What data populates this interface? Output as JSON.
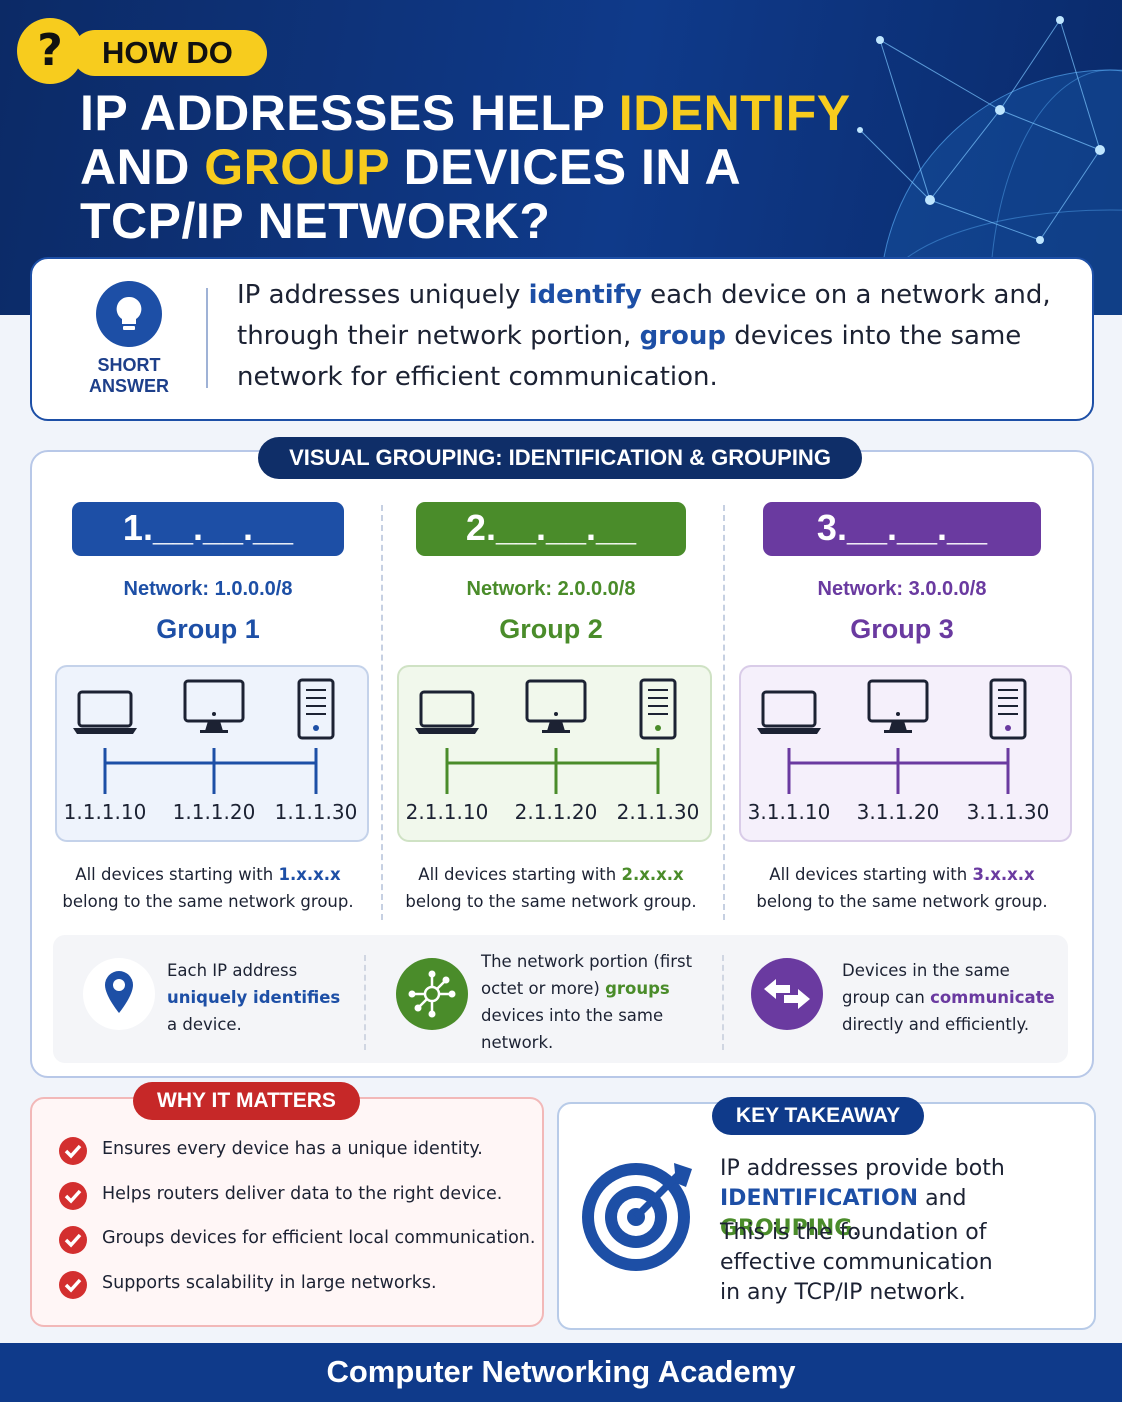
{
  "header": {
    "badge_icon": "?",
    "badge": "HOW DO",
    "title": [
      [
        "IP ADDRESSES HELP ",
        "IDENTIFY"
      ],
      [
        "AND ",
        "GROUP",
        " DEVICES IN A"
      ],
      [
        "TCP/IP NETWORK?"
      ]
    ]
  },
  "short_answer": {
    "label": [
      "SHORT",
      "ANSWER"
    ],
    "text": [
      "IP addresses uniquely ",
      "identify",
      " each device on a network and, through their network portion, ",
      "group",
      " devices into the same network for efficient communication."
    ]
  },
  "visual": {
    "title": "VISUAL GROUPING: IDENTIFICATION & GROUPING",
    "groups": [
      {
        "color": "#1d4fa6",
        "tint": "#eef3fc",
        "prefix": "1.__.__.__",
        "network": "Network: 1.0.0.0/8",
        "name": "Group 1",
        "ips": [
          "1.1.1.10",
          "1.1.1.20",
          "1.1.1.30"
        ],
        "note": [
          "All devices starting with ",
          "1.x.x.x",
          " belong to the same network group."
        ]
      },
      {
        "color": "#4a8c2a",
        "tint": "#f1f8ec",
        "prefix": "2.__.__.__",
        "network": "Network: 2.0.0.0/8",
        "name": "Group 2",
        "ips": [
          "2.1.1.10",
          "2.1.1.20",
          "2.1.1.30"
        ],
        "note": [
          "All devices starting with ",
          "2.x.x.x",
          " belong to the same network group."
        ]
      },
      {
        "color": "#6a3aa0",
        "tint": "#f5f0fb",
        "prefix": "3.__.__.__",
        "network": "Network: 3.0.0.0/8",
        "name": "Group 3",
        "ips": [
          "3.1.1.10",
          "3.1.1.20",
          "3.1.1.30"
        ],
        "note": [
          "All devices starting with ",
          "3.x.x.x",
          " belong to the same network group."
        ]
      }
    ],
    "points": [
      {
        "color": "#1d4fa6",
        "text": [
          "Each IP address ",
          "uniquely identifies",
          " a device."
        ]
      },
      {
        "color": "#4a8c2a",
        "text": [
          "The network portion (first octet or more) ",
          "groups",
          " devices into the same network."
        ]
      },
      {
        "color": "#6a3aa0",
        "text": [
          "Devices in the same group can ",
          "communicate",
          " directly and efficiently."
        ]
      }
    ]
  },
  "why": {
    "title": "WHY IT MATTERS",
    "items": [
      "Ensures every device has a unique identity.",
      "Helps routers deliver data to the right device.",
      "Groups devices for efficient local communication.",
      "Supports scalability in large networks."
    ]
  },
  "takeaway": {
    "title": "KEY TAKEAWAY",
    "text": [
      "IP addresses provide both ",
      "IDENTIFICATION",
      " and ",
      "GROUPING",
      "."
    ],
    "lines": [
      "This is the foundation of",
      "effective communication",
      "in any TCP/IP network."
    ]
  },
  "footer": "Computer Networking Academy"
}
